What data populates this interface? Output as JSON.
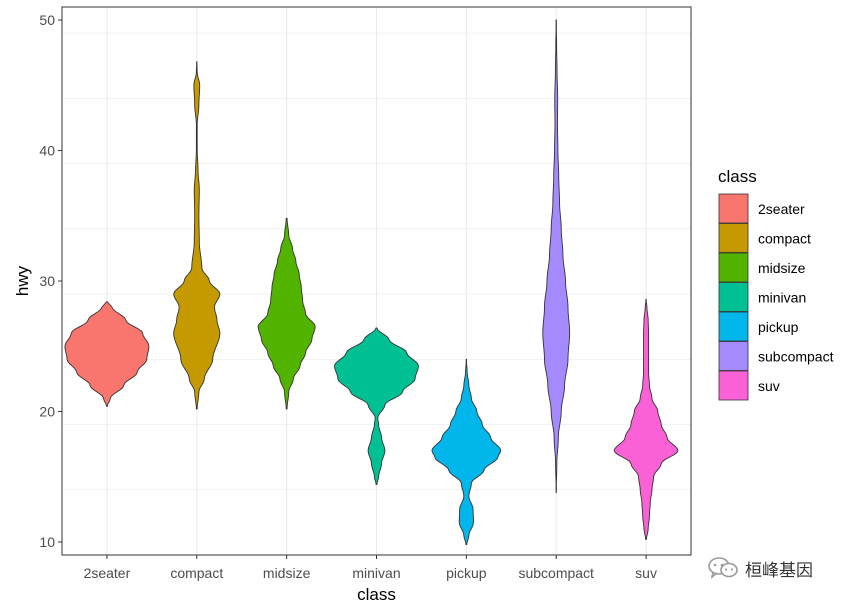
{
  "chart_data": {
    "type": "violin",
    "xlabel": "class",
    "ylabel": "hwy",
    "ylim": [
      9,
      51
    ],
    "yticks": [
      10,
      20,
      30,
      40,
      50
    ],
    "grid": true,
    "legend": {
      "title": "class",
      "placement": "right"
    },
    "series": [
      {
        "name": "2seater",
        "color": "#F8766D",
        "min": 20.4,
        "max": 28.4,
        "profile": [
          [
            20.4,
            0.01
          ],
          [
            21,
            0.08
          ],
          [
            22,
            0.4
          ],
          [
            23,
            0.72
          ],
          [
            24,
            0.95
          ],
          [
            25,
            1.0
          ],
          [
            26,
            0.85
          ],
          [
            27,
            0.45
          ],
          [
            28,
            0.12
          ],
          [
            28.4,
            0.01
          ]
        ]
      },
      {
        "name": "compact",
        "color": "#C49A00",
        "min": 20.2,
        "max": 46.8,
        "profile": [
          [
            20.2,
            0.01
          ],
          [
            21.5,
            0.05
          ],
          [
            22.5,
            0.18
          ],
          [
            24,
            0.38
          ],
          [
            26,
            0.55
          ],
          [
            27,
            0.48
          ],
          [
            28,
            0.42
          ],
          [
            29,
            0.55
          ],
          [
            30,
            0.3
          ],
          [
            31,
            0.12
          ],
          [
            33,
            0.06
          ],
          [
            35,
            0.05
          ],
          [
            37,
            0.06
          ],
          [
            38.5,
            0.03
          ],
          [
            40,
            0.01
          ],
          [
            42,
            0.01
          ],
          [
            43.5,
            0.05
          ],
          [
            45,
            0.07
          ],
          [
            46,
            0.01
          ],
          [
            46.8,
            0.0
          ]
        ]
      },
      {
        "name": "midsize",
        "color": "#53B400",
        "min": 20.2,
        "max": 34.8,
        "profile": [
          [
            20.2,
            0.01
          ],
          [
            21.5,
            0.05
          ],
          [
            22.5,
            0.16
          ],
          [
            23.5,
            0.32
          ],
          [
            24.5,
            0.45
          ],
          [
            25.5,
            0.6
          ],
          [
            26.5,
            0.68
          ],
          [
            27.5,
            0.45
          ],
          [
            28.5,
            0.38
          ],
          [
            29.5,
            0.35
          ],
          [
            30.5,
            0.3
          ],
          [
            31.5,
            0.22
          ],
          [
            32.5,
            0.14
          ],
          [
            33.5,
            0.05
          ],
          [
            34.8,
            0.01
          ]
        ]
      },
      {
        "name": "minivan",
        "color": "#00C094",
        "min": 14.4,
        "max": 26.4,
        "profile": [
          [
            14.4,
            0.01
          ],
          [
            15,
            0.05
          ],
          [
            16,
            0.12
          ],
          [
            17,
            0.2
          ],
          [
            18,
            0.12
          ],
          [
            19,
            0.05
          ],
          [
            19.5,
            0.03
          ],
          [
            20.5,
            0.2
          ],
          [
            21.5,
            0.62
          ],
          [
            22.5,
            0.92
          ],
          [
            23.5,
            1.0
          ],
          [
            24.5,
            0.72
          ],
          [
            25.5,
            0.3
          ],
          [
            26.4,
            0.01
          ]
        ]
      },
      {
        "name": "pickup",
        "color": "#00B6EB",
        "min": 9.8,
        "max": 24.0,
        "profile": [
          [
            9.8,
            0.01
          ],
          [
            10.5,
            0.06
          ],
          [
            11.5,
            0.17
          ],
          [
            12.5,
            0.16
          ],
          [
            13.5,
            0.06
          ],
          [
            14.5,
            0.12
          ],
          [
            15.5,
            0.42
          ],
          [
            16.5,
            0.75
          ],
          [
            17,
            0.82
          ],
          [
            18,
            0.58
          ],
          [
            19,
            0.38
          ],
          [
            20,
            0.25
          ],
          [
            21,
            0.12
          ],
          [
            22,
            0.06
          ],
          [
            23,
            0.02
          ],
          [
            24,
            0.0
          ]
        ]
      },
      {
        "name": "subcompact",
        "color": "#A58AFF",
        "min": 13.8,
        "max": 50.0,
        "profile": [
          [
            13.8,
            0.0
          ],
          [
            16,
            0.015
          ],
          [
            18,
            0.05
          ],
          [
            20,
            0.12
          ],
          [
            22,
            0.2
          ],
          [
            24,
            0.28
          ],
          [
            26,
            0.32
          ],
          [
            28,
            0.28
          ],
          [
            30,
            0.22
          ],
          [
            32,
            0.16
          ],
          [
            34,
            0.12
          ],
          [
            36,
            0.08
          ],
          [
            38,
            0.06
          ],
          [
            40,
            0.04
          ],
          [
            42,
            0.03
          ],
          [
            44,
            0.035
          ],
          [
            46,
            0.02
          ],
          [
            48,
            0.01
          ],
          [
            50,
            0.0
          ]
        ]
      },
      {
        "name": "suv",
        "color": "#FB61D7",
        "min": 10.2,
        "max": 28.6,
        "profile": [
          [
            10.2,
            0.01
          ],
          [
            11,
            0.05
          ],
          [
            12,
            0.08
          ],
          [
            13,
            0.1
          ],
          [
            14,
            0.14
          ],
          [
            15,
            0.18
          ],
          [
            16,
            0.36
          ],
          [
            17,
            0.76
          ],
          [
            18,
            0.5
          ],
          [
            19,
            0.36
          ],
          [
            20,
            0.28
          ],
          [
            21,
            0.14
          ],
          [
            22,
            0.08
          ],
          [
            23,
            0.06
          ],
          [
            24,
            0.06
          ],
          [
            25,
            0.06
          ],
          [
            26,
            0.06
          ],
          [
            27,
            0.05
          ],
          [
            28,
            0.02
          ],
          [
            28.6,
            0.0
          ]
        ]
      }
    ]
  },
  "watermark": {
    "text": "桓峰基因",
    "icon": "wechat-icon"
  }
}
